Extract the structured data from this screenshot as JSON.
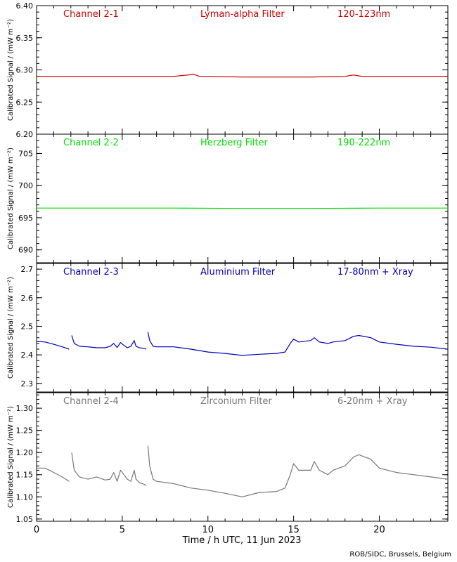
{
  "chart_data": {
    "type": "scatter",
    "xlabel": "Time / h UTC, 11 Jun 2023",
    "xlim": [
      0,
      24
    ],
    "x_ticks": [
      "0",
      "5",
      "10",
      "15",
      "20"
    ],
    "x_tick_values": [
      0,
      5,
      10,
      15,
      20
    ],
    "credit": "ROB/SIDC, Brussels, Belgium",
    "panels": [
      {
        "name": "Channel 2-1",
        "filter": "Lyman-alpha Filter",
        "band": "120-123nm",
        "color": "#cc0000",
        "ylabel": "Calibrated Signal / (mW m⁻²)",
        "ylim": [
          6.2,
          6.4
        ],
        "y_ticks": [
          "6.20",
          "6.25",
          "6.30",
          "6.35",
          "6.40"
        ],
        "y_tick_values": [
          6.2,
          6.25,
          6.3,
          6.35,
          6.4
        ],
        "series": [
          {
            "x": [
              0,
              2,
              4,
              6,
              8,
              9.2,
              9.5,
              10,
              12,
              14,
              16,
              18,
              18.5,
              19,
              20,
              22,
              24
            ],
            "y": [
              6.29,
              6.29,
              6.29,
              6.29,
              6.29,
              6.293,
              6.29,
              6.29,
              6.289,
              6.289,
              6.289,
              6.29,
              6.292,
              6.29,
              6.29,
              6.29,
              6.29
            ]
          }
        ]
      },
      {
        "name": "Channel 2-2",
        "filter": "Herzberg Filter",
        "band": "190-222nm",
        "color": "#00dd00",
        "ylabel": "Calibrated Signal / (mW m⁻²)",
        "ylim": [
          688,
          708
        ],
        "y_ticks": [
          "690",
          "695",
          "700",
          "705"
        ],
        "y_tick_values": [
          690,
          695,
          700,
          705
        ],
        "series": [
          {
            "x": [
              0,
              4,
              8,
              12,
              16,
              20,
              24
            ],
            "y": [
              696.5,
              696.5,
              696.5,
              696.45,
              696.45,
              696.5,
              696.5
            ]
          }
        ]
      },
      {
        "name": "Channel 2-3",
        "filter": "Aluminium Filter",
        "band": "17-80nm + Xray",
        "color": "#0000bb",
        "ylabel": "Calibrated Signal / (mW m⁻²)",
        "ylim": [
          2.27,
          2.72
        ],
        "y_ticks": [
          "2.3",
          "2.4",
          "2.5",
          "2.6",
          "2.7"
        ],
        "y_tick_values": [
          2.3,
          2.4,
          2.5,
          2.6,
          2.7
        ],
        "series": [
          {
            "x": [
              0,
              0.5,
              1,
              1.5,
              1.9
            ],
            "y": [
              2.447,
              2.445,
              2.437,
              2.428,
              2.42
            ]
          },
          {
            "x": [
              2.05,
              2.2,
              2.5,
              3,
              3.5,
              4,
              4.3,
              4.5,
              4.7,
              4.9,
              5.1,
              5.3,
              5.5,
              5.7,
              5.8,
              6.0,
              6.3,
              6.4
            ],
            "y": [
              2.468,
              2.44,
              2.43,
              2.428,
              2.425,
              2.425,
              2.43,
              2.44,
              2.426,
              2.443,
              2.433,
              2.425,
              2.43,
              2.45,
              2.43,
              2.425,
              2.422,
              2.42
            ]
          },
          {
            "x": [
              6.5,
              6.6,
              6.8,
              7,
              8,
              9,
              10,
              11,
              12,
              13,
              14,
              14.5,
              14.8,
              15,
              15.3,
              16,
              16.2,
              16.5,
              17,
              17.3,
              18,
              18.5,
              18.8,
              19.5,
              20,
              21,
              22,
              23,
              24
            ],
            "y": [
              2.48,
              2.45,
              2.43,
              2.428,
              2.428,
              2.42,
              2.41,
              2.405,
              2.398,
              2.402,
              2.405,
              2.41,
              2.44,
              2.455,
              2.445,
              2.45,
              2.46,
              2.445,
              2.44,
              2.445,
              2.45,
              2.465,
              2.468,
              2.46,
              2.445,
              2.437,
              2.43,
              2.427,
              2.42
            ]
          }
        ]
      },
      {
        "name": "Channel 2-4",
        "filter": "Zirconium Filter",
        "band": "6-20nm + Xray",
        "color": "#777777",
        "ylabel": "Calibrated Signal / (mW m⁻²)",
        "ylim": [
          1.045,
          1.335
        ],
        "y_ticks": [
          "1.05",
          "1.10",
          "1.15",
          "1.20",
          "1.25",
          "1.30"
        ],
        "y_tick_values": [
          1.05,
          1.1,
          1.15,
          1.2,
          1.25,
          1.3
        ],
        "series": [
          {
            "x": [
              0,
              0.5,
              1,
              1.5,
              1.9
            ],
            "y": [
              1.165,
              1.165,
              1.155,
              1.145,
              1.135
            ]
          },
          {
            "x": [
              2.05,
              2.2,
              2.5,
              3,
              3.5,
              4,
              4.3,
              4.5,
              4.7,
              4.9,
              5.1,
              5.3,
              5.5,
              5.7,
              5.8,
              6.0,
              6.3,
              6.4
            ],
            "y": [
              1.2,
              1.16,
              1.145,
              1.14,
              1.145,
              1.138,
              1.14,
              1.155,
              1.135,
              1.16,
              1.15,
              1.14,
              1.135,
              1.16,
              1.14,
              1.132,
              1.128,
              1.125
            ]
          },
          {
            "x": [
              6.5,
              6.6,
              6.8,
              7,
              8,
              9,
              10,
              11,
              12,
              13,
              14,
              14.5,
              14.8,
              15,
              15.3,
              16,
              16.2,
              16.5,
              17,
              17.3,
              18,
              18.5,
              18.8,
              19.5,
              20,
              21,
              22,
              23,
              24
            ],
            "y": [
              1.215,
              1.17,
              1.14,
              1.135,
              1.13,
              1.12,
              1.115,
              1.108,
              1.1,
              1.11,
              1.112,
              1.12,
              1.15,
              1.175,
              1.16,
              1.16,
              1.18,
              1.16,
              1.15,
              1.16,
              1.17,
              1.19,
              1.195,
              1.185,
              1.165,
              1.155,
              1.15,
              1.145,
              1.14
            ]
          }
        ]
      }
    ]
  }
}
